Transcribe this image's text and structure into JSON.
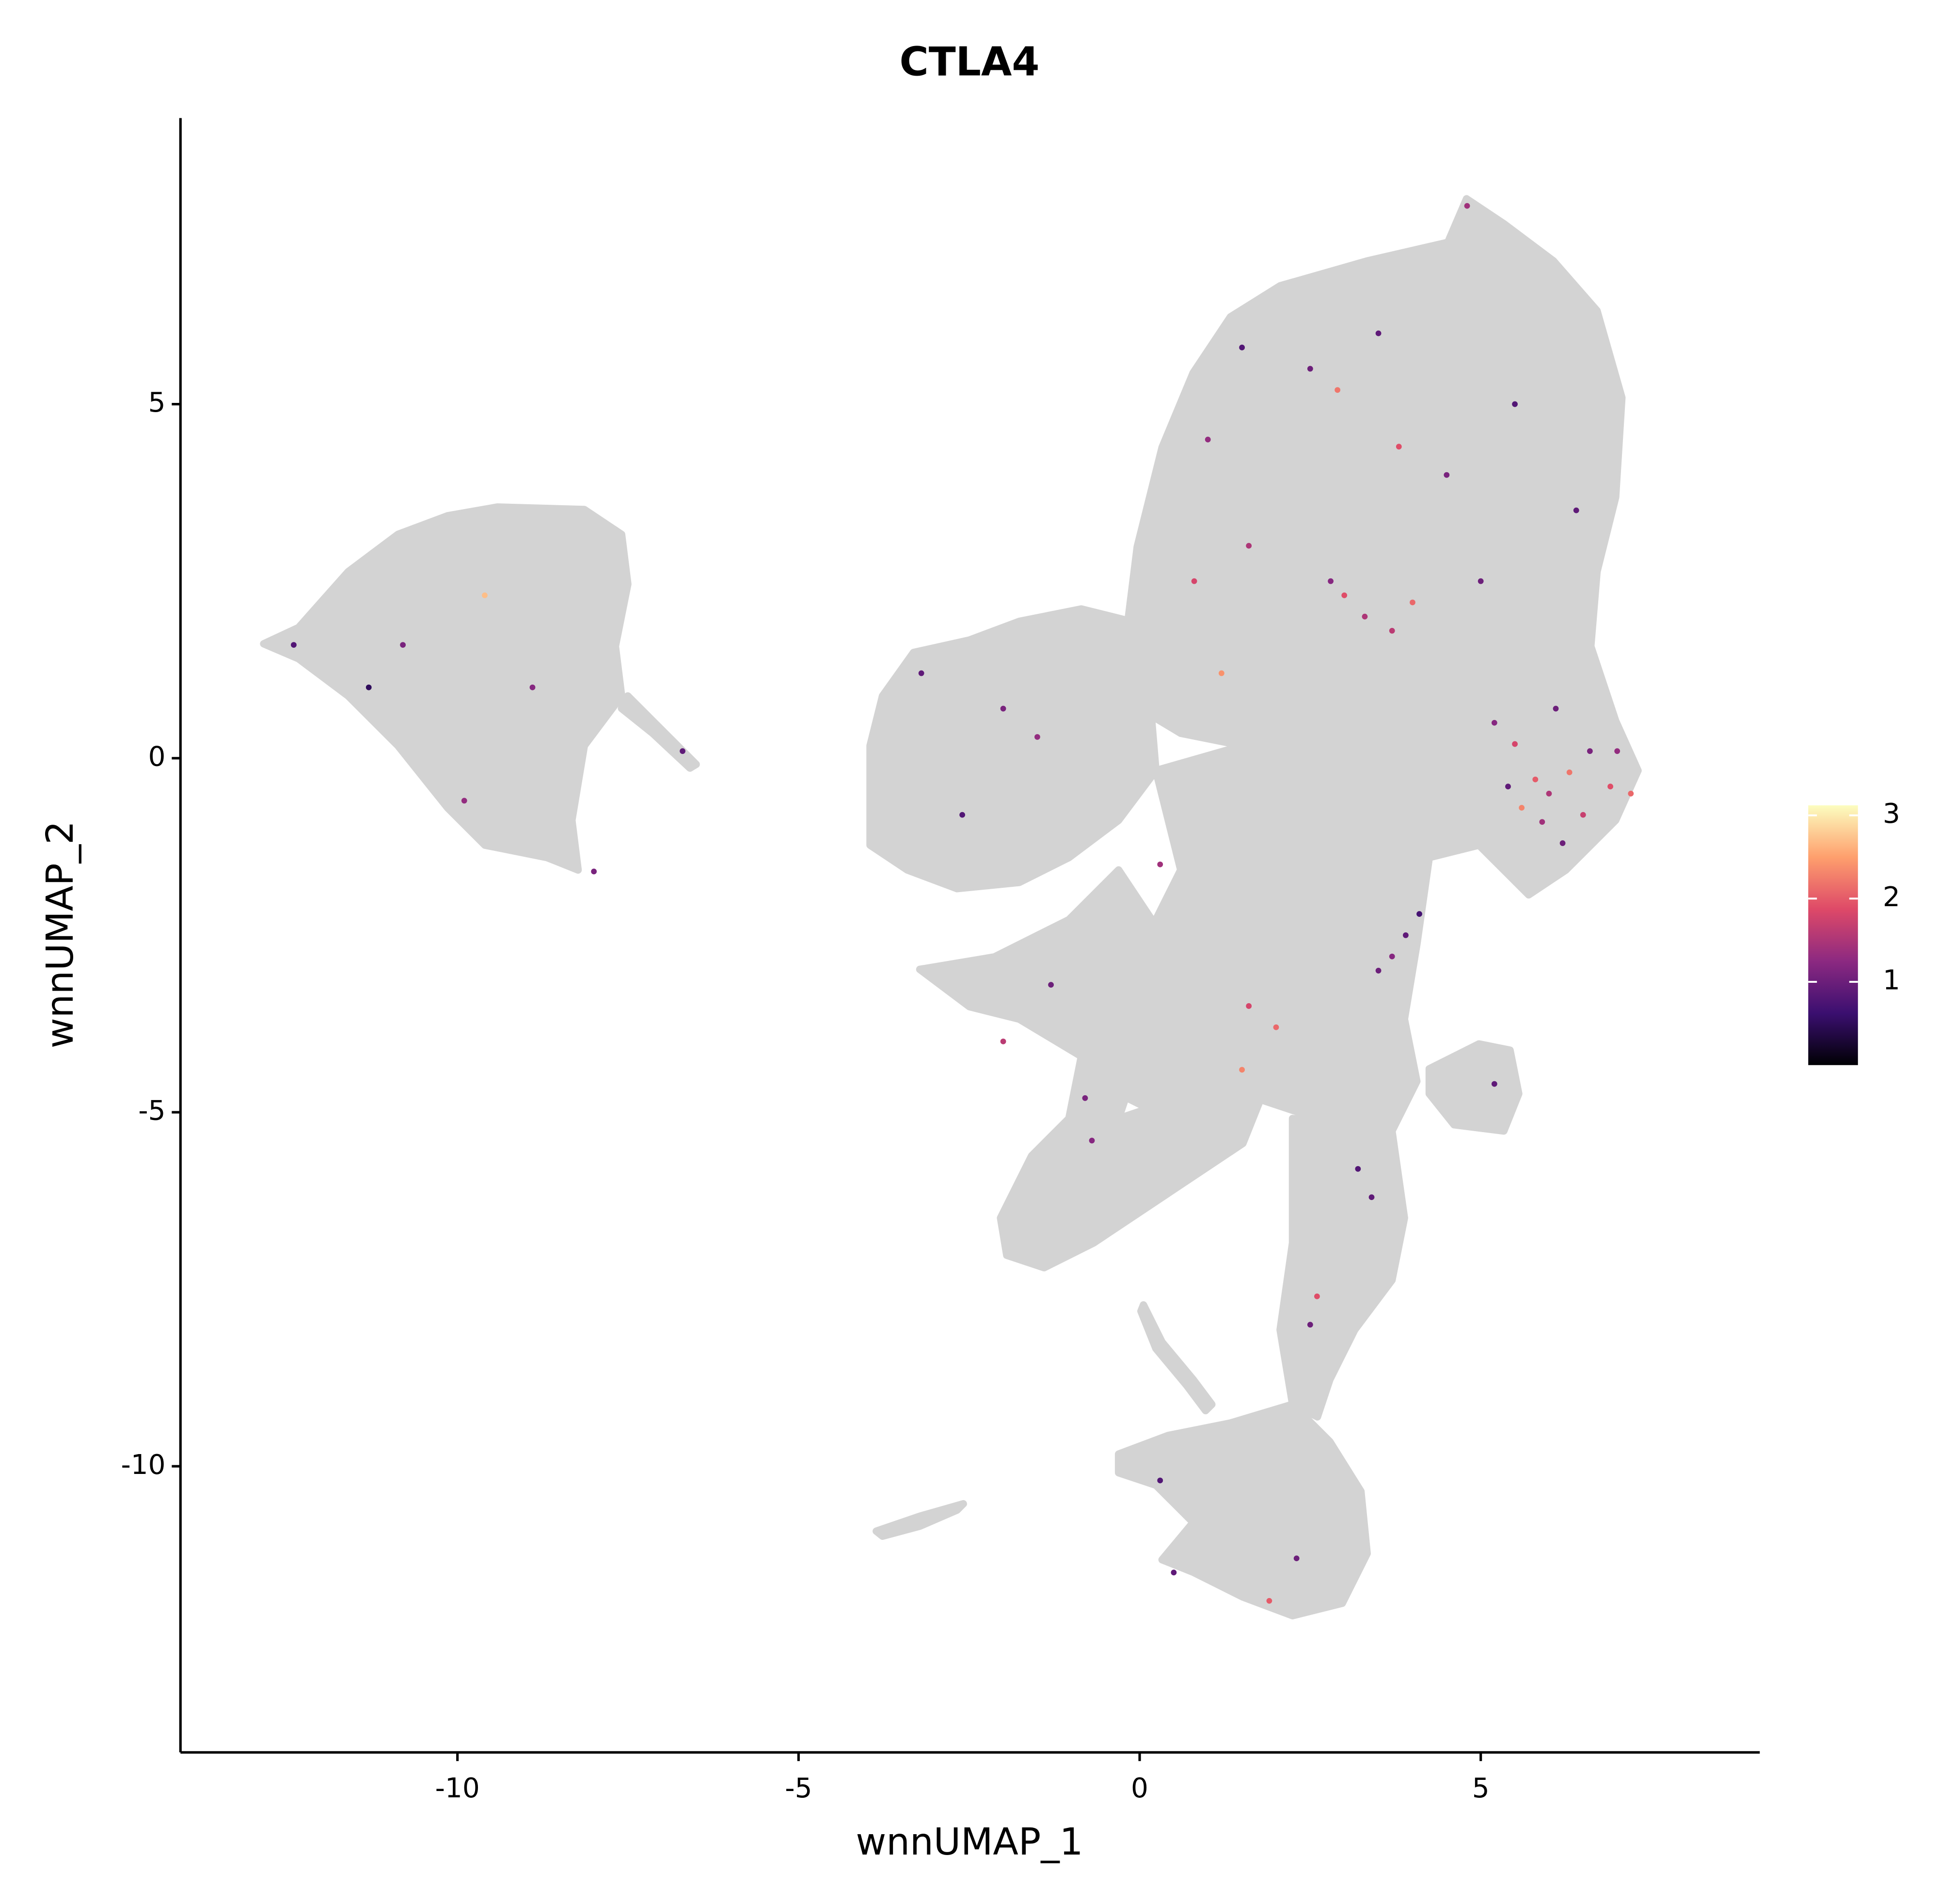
{
  "chart_data": {
    "type": "scatter",
    "title": "CTLA4",
    "x_label": "wnnUMAP_1",
    "y_label": "wnnUMAP_2",
    "xlim": [
      -14.06,
      9.09
    ],
    "ylim": [
      -14.04,
      9.04
    ],
    "xticks": [
      -10,
      -5,
      0,
      5
    ],
    "yticks": [
      -10,
      -5,
      0,
      5
    ],
    "colorlim": [
      0,
      3.12
    ],
    "colorbar_ticks": [
      1,
      2,
      3
    ],
    "colormap": [
      "#000004",
      "#3b0f70",
      "#8c2981",
      "#de4968",
      "#fe9f6d",
      "#fcfdbf"
    ],
    "x": [
      5.2,
      5.5,
      5.8,
      6.0,
      6.3,
      6.6,
      6.9,
      7.2,
      5.6,
      6.1,
      5.9,
      6.5,
      7.0,
      5.4,
      6.2,
      3.0,
      3.3,
      2.8,
      3.7,
      4.0,
      2.5,
      3.5,
      1.0,
      4.5,
      5.5,
      2.9,
      1.6,
      0.8,
      6.4,
      5.0,
      4.8,
      1.5,
      3.8,
      1.2,
      -3.2,
      -2.0,
      -1.5,
      -2.6,
      0.3,
      3.9,
      3.7,
      4.1,
      3.5,
      1.6,
      2.0,
      1.5,
      -1.3,
      -2.0,
      -0.8,
      3.2,
      3.4,
      2.6,
      2.5,
      0.3,
      2.3,
      1.9,
      0.5,
      -0.7,
      5.2,
      -12.4,
      -11.3,
      -9.6,
      -10.8,
      -8.9,
      -6.7,
      -9.9,
      -8.0
    ],
    "y": [
      0.5,
      0.2,
      -0.3,
      -0.5,
      -0.2,
      0.1,
      -0.4,
      -0.5,
      -0.7,
      0.7,
      -0.9,
      -0.8,
      0.1,
      -0.4,
      -1.2,
      2.3,
      2.0,
      2.5,
      1.8,
      2.2,
      5.5,
      6.0,
      4.5,
      4.0,
      5.0,
      5.2,
      3.0,
      2.5,
      3.5,
      2.5,
      7.8,
      5.8,
      4.4,
      1.2,
      1.2,
      0.7,
      0.3,
      -0.8,
      -1.5,
      -2.5,
      -2.8,
      -2.2,
      -3.0,
      -3.5,
      -3.8,
      -4.4,
      -3.2,
      -4.0,
      -4.8,
      -5.8,
      -6.2,
      -7.6,
      -8.0,
      -10.2,
      -11.3,
      -11.9,
      -11.5,
      -5.4,
      -4.6,
      1.6,
      1.0,
      2.3,
      1.6,
      1.0,
      0.1,
      -0.6,
      -1.6
    ],
    "values": [
      1.2,
      1.8,
      2.0,
      1.5,
      2.2,
      1.1,
      1.9,
      2.1,
      2.3,
      1.0,
      1.4,
      1.7,
      1.3,
      0.9,
      1.0,
      1.9,
      1.5,
      1.2,
      1.6,
      2.1,
      1.0,
      0.9,
      1.3,
      1.1,
      0.8,
      2.2,
      1.5,
      1.8,
      0.9,
      1.0,
      1.4,
      0.8,
      1.9,
      2.4,
      0.9,
      1.1,
      1.3,
      0.8,
      1.4,
      0.9,
      1.2,
      0.7,
      1.0,
      1.8,
      2.1,
      2.3,
      1.0,
      1.6,
      1.1,
      0.8,
      0.9,
      1.9,
      1.0,
      0.8,
      1.0,
      2.0,
      0.9,
      1.2,
      0.9,
      0.8,
      0.5,
      2.7,
      1.1,
      1.2,
      0.9,
      1.3,
      1.1
    ]
  }
}
